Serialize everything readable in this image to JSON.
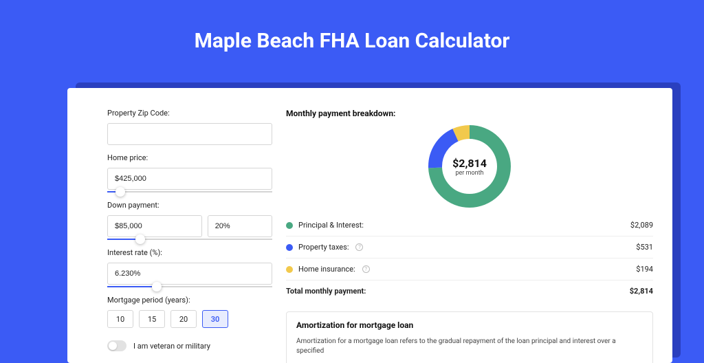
{
  "title": "Maple Beach FHA Loan Calculator",
  "colors": {
    "page_bg": "#3b5bf5",
    "card_shadow": "#2a3fbf",
    "card_bg": "#ffffff",
    "accent": "#3b5bf5",
    "text": "#222222",
    "border": "#d5d5d5"
  },
  "form": {
    "zip": {
      "label": "Property Zip Code:",
      "value": ""
    },
    "home_price": {
      "label": "Home price:",
      "value": "$425,000",
      "slider_pct": 8
    },
    "down_payment": {
      "label": "Down payment:",
      "amount": "$85,000",
      "pct": "20%",
      "slider_pct": 20
    },
    "interest_rate": {
      "label": "Interest rate (%):",
      "value": "6.230%",
      "slider_pct": 30
    },
    "mortgage_period": {
      "label": "Mortgage period (years):",
      "options": [
        "10",
        "15",
        "20",
        "30"
      ],
      "selected": "30"
    },
    "veteran": {
      "label": "I am veteran or military",
      "checked": false
    }
  },
  "breakdown": {
    "title": "Monthly payment breakdown:",
    "center_value": "$2,814",
    "center_label": "per month",
    "lines": [
      {
        "color": "#49a882",
        "label": "Principal & Interest:",
        "value": "$2,089",
        "info": false
      },
      {
        "color": "#3b5bf5",
        "label": "Property taxes:",
        "value": "$531",
        "info": true
      },
      {
        "color": "#f2c94c",
        "label": "Home insurance:",
        "value": "$194",
        "info": true
      }
    ],
    "total": {
      "label": "Total monthly payment:",
      "value": "$2,814"
    },
    "donut": {
      "segments": [
        {
          "color": "#49a882",
          "value": 2089
        },
        {
          "color": "#3b5bf5",
          "value": 531
        },
        {
          "color": "#f2c94c",
          "value": 194
        }
      ],
      "stroke_width": 20,
      "radius": 50
    }
  },
  "amortization": {
    "title": "Amortization for mortgage loan",
    "text": "Amortization for a mortgage loan refers to the gradual repayment of the loan principal and interest over a specified"
  }
}
